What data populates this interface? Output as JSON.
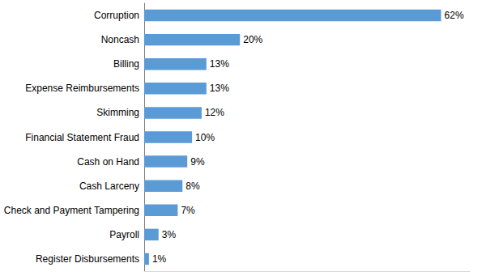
{
  "chart_data": {
    "type": "bar",
    "orientation": "horizontal",
    "categories": [
      "Corruption",
      "Noncash",
      "Billing",
      "Expense Reimbursements",
      "Skimming",
      "Financial Statement Fraud",
      "Cash on Hand",
      "Cash Larceny",
      "Check and Payment Tampering",
      "Payroll",
      "Register Disbursements"
    ],
    "values": [
      62,
      20,
      13,
      13,
      12,
      10,
      9,
      8,
      7,
      3,
      1
    ],
    "value_labels": [
      "62%",
      "20%",
      "13%",
      "13%",
      "12%",
      "10%",
      "9%",
      "8%",
      "7%",
      "3%",
      "1%"
    ],
    "color": "#5b9bd5",
    "xlim": [
      0,
      68
    ],
    "grid": false,
    "data_labels": true,
    "tick_labels": "y"
  }
}
